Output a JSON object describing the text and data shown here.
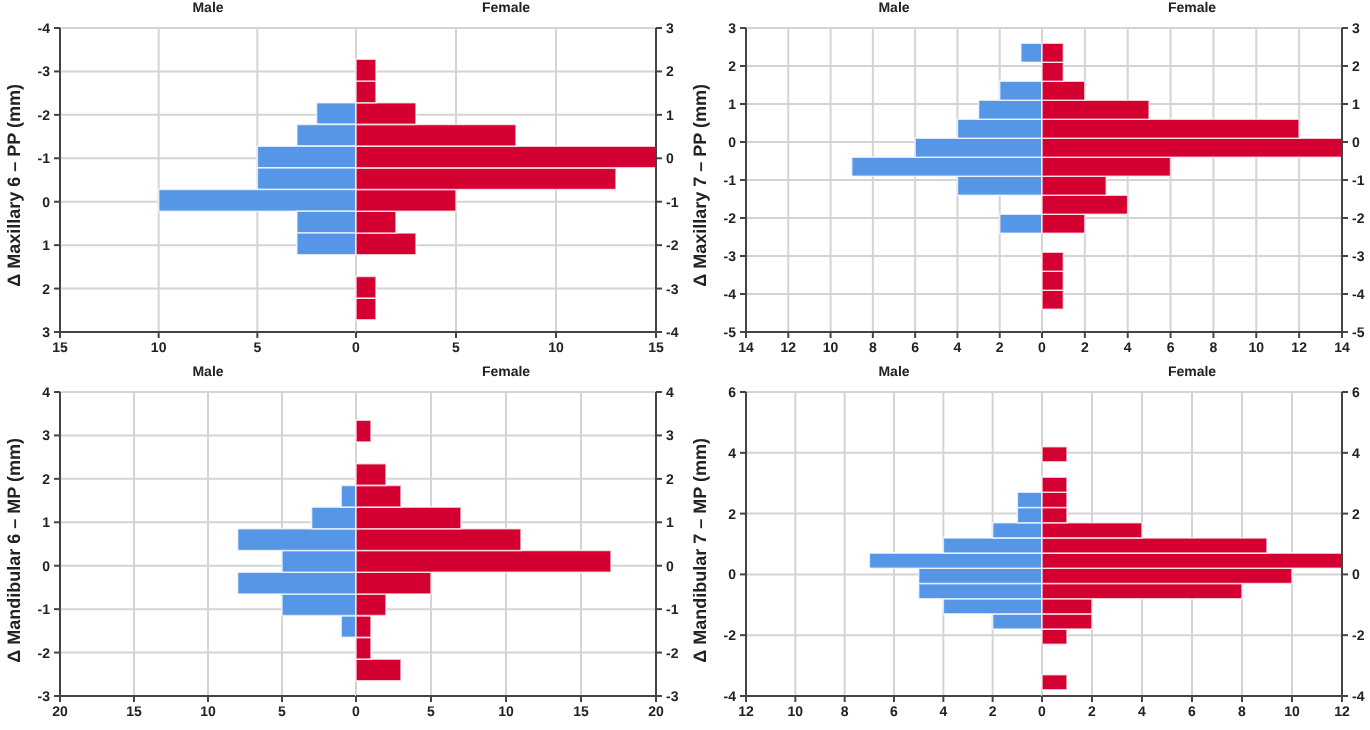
{
  "chart_data": [
    {
      "type": "histogram",
      "orientation": "horizontal",
      "title": "Male",
      "ylabel": "Δ Maxillary 6 – PP (mm)",
      "bins": [
        -3.28,
        -2.78,
        -2.28,
        -1.78,
        -1.28,
        -0.78,
        -0.28,
        0.22,
        0.72,
        1.22,
        1.72,
        2.22,
        2.72
      ],
      "values": [
        0,
        0,
        2,
        3,
        5,
        5,
        10,
        3,
        3,
        0,
        0,
        0
      ],
      "color": "#5596e6",
      "xlim": [
        15,
        0
      ],
      "xticks": [
        15,
        10,
        5
      ],
      "ylim": [
        3,
        -4
      ],
      "yticks": [
        -4,
        -3,
        -2,
        -1,
        0,
        1,
        2,
        3
      ],
      "grid": true
    },
    {
      "type": "histogram",
      "orientation": "horizontal",
      "title": "Female",
      "bins": [
        -3.72,
        -3.22,
        -2.72,
        -2.22,
        -1.72,
        -1.22,
        -0.72,
        -0.22,
        0.28,
        0.78,
        1.28,
        1.78,
        2.28
      ],
      "values": [
        1,
        1,
        0,
        3,
        2,
        5,
        13,
        15,
        8,
        3,
        1,
        1
      ],
      "color": "#d40031",
      "xlim": [
        0,
        15
      ],
      "xticks": [
        0,
        5,
        10,
        15
      ],
      "ylim": [
        -4,
        3
      ],
      "yticks": [
        -4,
        -3,
        -2,
        -1,
        0,
        1,
        2,
        3
      ],
      "grid": true
    },
    {
      "type": "histogram",
      "orientation": "horizontal",
      "title": "Male",
      "ylabel": "Δ Maxillary 7 – PP (mm)",
      "bins": [
        -4.4,
        -3.9,
        -3.4,
        -2.9,
        -2.4,
        -1.9,
        -1.4,
        -0.9,
        -0.4,
        0.1,
        0.6,
        1.1,
        1.6,
        2.1,
        2.6
      ],
      "values": [
        0,
        0,
        0,
        0,
        2,
        0,
        4,
        9,
        6,
        4,
        3,
        2,
        0,
        1
      ],
      "color": "#5596e6",
      "xlim": [
        14,
        0
      ],
      "xticks": [
        14,
        12,
        10,
        8,
        6,
        4,
        2
      ],
      "ylim": [
        -5,
        3
      ],
      "yticks": [
        -5,
        -4,
        -3,
        -2,
        -1,
        0,
        1,
        2,
        3
      ],
      "grid": true
    },
    {
      "type": "histogram",
      "orientation": "horizontal",
      "title": "Female",
      "bins": [
        -4.4,
        -3.9,
        -3.4,
        -2.9,
        -2.4,
        -1.9,
        -1.4,
        -0.9,
        -0.4,
        0.1,
        0.6,
        1.1,
        1.6,
        2.1,
        2.6
      ],
      "values": [
        1,
        1,
        1,
        0,
        2,
        4,
        3,
        6,
        14,
        12,
        5,
        2,
        1,
        1
      ],
      "color": "#d40031",
      "xlim": [
        0,
        14
      ],
      "xticks": [
        0,
        2,
        4,
        6,
        8,
        10,
        12,
        14
      ],
      "ylim": [
        -5,
        3
      ],
      "yticks": [
        -5,
        -4,
        -3,
        -2,
        -1,
        0,
        1,
        2,
        3
      ],
      "grid": true
    },
    {
      "type": "histogram",
      "orientation": "horizontal",
      "title": "Male",
      "ylabel": "Δ Mandibular 6 – MP (mm)",
      "bins": [
        -2.65,
        -2.15,
        -1.65,
        -1.15,
        -0.65,
        -0.15,
        0.35,
        0.85,
        1.35,
        1.85,
        2.35,
        2.85,
        3.35
      ],
      "values": [
        0,
        0,
        1,
        5,
        8,
        5,
        8,
        3,
        1,
        0,
        0,
        0
      ],
      "color": "#5596e6",
      "xlim": [
        20,
        0
      ],
      "xticks": [
        20,
        15,
        10,
        5
      ],
      "ylim": [
        -3,
        4
      ],
      "yticks": [
        -3,
        -2,
        -1,
        0,
        1,
        2,
        3,
        4
      ],
      "grid": true
    },
    {
      "type": "histogram",
      "orientation": "horizontal",
      "title": "Female",
      "bins": [
        -2.65,
        -2.15,
        -1.65,
        -1.15,
        -0.65,
        -0.15,
        0.35,
        0.85,
        1.35,
        1.85,
        2.35,
        2.85,
        3.35
      ],
      "values": [
        3,
        1,
        1,
        2,
        5,
        17,
        11,
        7,
        3,
        2,
        0,
        1
      ],
      "color": "#d40031",
      "xlim": [
        0,
        20
      ],
      "xticks": [
        0,
        5,
        10,
        15,
        20
      ],
      "ylim": [
        -3,
        4
      ],
      "yticks": [
        -3,
        -2,
        -1,
        0,
        1,
        2,
        3,
        4
      ],
      "grid": true
    },
    {
      "type": "histogram",
      "orientation": "horizontal",
      "title": "Male",
      "ylabel": "Δ Mandibular 7 – MP (mm)",
      "bins": [
        -3.8,
        -3.3,
        -2.8,
        -2.3,
        -1.8,
        -1.3,
        -0.8,
        -0.3,
        0.2,
        0.7,
        1.2,
        1.7,
        2.2,
        2.7,
        3.2,
        3.7,
        4.2
      ],
      "values": [
        0,
        0,
        0,
        0,
        2,
        4,
        5,
        5,
        7,
        4,
        2,
        1,
        1,
        0,
        0,
        0
      ],
      "color": "#5596e6",
      "xlim": [
        12,
        0
      ],
      "xticks": [
        12,
        10,
        8,
        6,
        4,
        2
      ],
      "ylim": [
        -4,
        6
      ],
      "yticks": [
        -4,
        -2,
        0,
        2,
        4,
        6
      ],
      "grid": true
    },
    {
      "type": "histogram",
      "orientation": "horizontal",
      "title": "Female",
      "bins": [
        -3.8,
        -3.3,
        -2.8,
        -2.3,
        -1.8,
        -1.3,
        -0.8,
        -0.3,
        0.2,
        0.7,
        1.2,
        1.7,
        2.2,
        2.7,
        3.2,
        3.7,
        4.2
      ],
      "values": [
        1,
        0,
        0,
        1,
        2,
        2,
        8,
        10,
        12,
        9,
        4,
        1,
        1,
        1,
        0,
        1
      ],
      "color": "#d40031",
      "xlim": [
        0,
        12
      ],
      "xticks": [
        0,
        2,
        4,
        6,
        8,
        10,
        12
      ],
      "ylim": [
        -4,
        6
      ],
      "yticks": [
        -4,
        -2,
        0,
        2,
        4,
        6
      ],
      "grid": true
    }
  ]
}
